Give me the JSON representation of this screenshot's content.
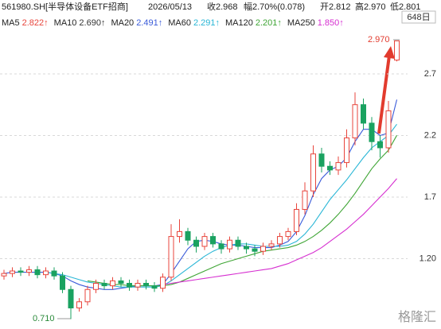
{
  "chart_data": {
    "type": "candlestick",
    "header": {
      "symbol": "561980.SH[半导体设备ETF招商]",
      "date": "2026/05/13",
      "close": "收2.968",
      "change": "幅2.70%(0.078)",
      "open": "开2.812",
      "high": "高2.970",
      "low": "低2.801"
    },
    "period": "648日",
    "watermark": "格隆汇",
    "annotations": {
      "max": "2.970",
      "min": "0.710"
    },
    "ylim": [
      0.655,
      3.106
    ],
    "yticks": [
      {
        "value": 1.2,
        "label": "1.20"
      },
      1.7,
      2.2,
      2.7
    ],
    "grid": true,
    "up_color": "#e8453c",
    "down_color": "#1aa260",
    "open": [
      1.06,
      1.08,
      1.1,
      1.09,
      1.11,
      1.07,
      1.1,
      1.06,
      0.95,
      0.8,
      0.85,
      0.95,
      1.0,
      0.98,
      1.02,
      1.0,
      0.97,
      1.0,
      0.98,
      0.96,
      1.05,
      1.38,
      1.42,
      1.35,
      1.3,
      1.38,
      1.32,
      1.28,
      1.35,
      1.3,
      1.28,
      1.26,
      1.3,
      1.32,
      1.38,
      1.42,
      1.6,
      1.75,
      2.05,
      1.95,
      1.92,
      1.98,
      2.18,
      2.45,
      2.3,
      2.15,
      2.1,
      2.812
    ],
    "high": [
      1.11,
      1.13,
      1.13,
      1.14,
      1.14,
      1.13,
      1.13,
      1.09,
      0.98,
      0.88,
      0.98,
      1.03,
      1.03,
      1.05,
      1.05,
      1.03,
      1.03,
      1.03,
      1.01,
      1.08,
      1.48,
      1.52,
      1.45,
      1.38,
      1.41,
      1.41,
      1.35,
      1.38,
      1.38,
      1.33,
      1.31,
      1.33,
      1.35,
      1.41,
      1.45,
      1.65,
      1.82,
      2.12,
      2.1,
      1.99,
      2.03,
      2.25,
      2.55,
      2.5,
      2.35,
      2.2,
      2.48,
      2.97
    ],
    "low": [
      1.03,
      1.05,
      1.06,
      1.06,
      1.04,
      1.04,
      1.03,
      0.92,
      0.71,
      0.77,
      0.82,
      0.92,
      0.95,
      0.95,
      0.97,
      0.94,
      0.94,
      0.95,
      0.93,
      0.93,
      1.02,
      1.33,
      1.31,
      1.25,
      1.27,
      1.29,
      1.24,
      1.25,
      1.27,
      1.24,
      1.22,
      1.23,
      1.27,
      1.29,
      1.35,
      1.39,
      1.56,
      1.7,
      1.9,
      1.88,
      1.88,
      1.94,
      2.12,
      2.25,
      2.08,
      2.02,
      2.06,
      2.801
    ],
    "close": [
      1.08,
      1.1,
      1.09,
      1.11,
      1.07,
      1.1,
      1.06,
      0.95,
      0.8,
      0.85,
      0.95,
      1.0,
      0.98,
      1.02,
      1.0,
      0.97,
      1.0,
      0.98,
      0.96,
      1.05,
      1.38,
      1.42,
      1.35,
      1.3,
      1.38,
      1.32,
      1.28,
      1.35,
      1.3,
      1.28,
      1.26,
      1.3,
      1.32,
      1.38,
      1.42,
      1.6,
      1.75,
      2.05,
      1.95,
      1.92,
      1.98,
      2.18,
      2.45,
      2.3,
      2.15,
      2.1,
      2.4,
      2.968
    ],
    "series": [
      {
        "name": "MA5",
        "color": "#e8453c",
        "label": "2.822↑"
      },
      {
        "name": "MA10",
        "color": "#333333",
        "label": "2.690↑"
      },
      {
        "name": "MA20",
        "color": "#3a5bd9",
        "label": "2.491↑",
        "values": [
          1.08,
          1.09,
          1.09,
          1.09,
          1.09,
          1.09,
          1.08,
          1.06,
          1.02,
          0.99,
          0.97,
          0.96,
          0.95,
          0.95,
          0.96,
          0.97,
          0.98,
          0.98,
          0.98,
          0.99,
          1.08,
          1.18,
          1.28,
          1.34,
          1.35,
          1.34,
          1.32,
          1.31,
          1.31,
          1.3,
          1.29,
          1.29,
          1.29,
          1.31,
          1.34,
          1.42,
          1.55,
          1.72,
          1.85,
          1.92,
          1.95,
          2.02,
          2.15,
          2.25,
          2.25,
          2.2,
          2.22,
          2.491
        ]
      },
      {
        "name": "MA60",
        "color": "#29b6d6",
        "label": "2.291↑",
        "values": [
          null,
          null,
          null,
          null,
          null,
          1.09,
          1.08,
          1.07,
          1.05,
          1.03,
          1.01,
          1.0,
          0.99,
          0.98,
          0.97,
          0.97,
          0.97,
          0.97,
          0.97,
          0.98,
          1.02,
          1.07,
          1.12,
          1.17,
          1.22,
          1.26,
          1.29,
          1.31,
          1.32,
          1.32,
          1.31,
          1.3,
          1.3,
          1.3,
          1.31,
          1.34,
          1.4,
          1.48,
          1.58,
          1.68,
          1.76,
          1.84,
          1.93,
          2.02,
          2.1,
          2.15,
          2.2,
          2.291
        ]
      },
      {
        "name": "MA120",
        "color": "#3fa535",
        "label": "2.201↑",
        "values": [
          null,
          null,
          null,
          null,
          null,
          null,
          null,
          null,
          null,
          null,
          1.02,
          1.01,
          1.0,
          0.99,
          0.99,
          0.98,
          0.98,
          0.98,
          0.98,
          0.98,
          0.99,
          1.01,
          1.04,
          1.07,
          1.1,
          1.13,
          1.16,
          1.18,
          1.2,
          1.22,
          1.24,
          1.26,
          1.27,
          1.28,
          1.29,
          1.31,
          1.34,
          1.38,
          1.43,
          1.49,
          1.56,
          1.64,
          1.73,
          1.83,
          1.93,
          2.01,
          2.08,
          2.201
        ]
      },
      {
        "name": "MA250",
        "color": "#d62fd0",
        "label": "1.850↑",
        "values": [
          null,
          null,
          null,
          null,
          null,
          null,
          null,
          null,
          null,
          null,
          null,
          null,
          null,
          null,
          null,
          null,
          null,
          null,
          null,
          0.99,
          1.0,
          1.01,
          1.02,
          1.03,
          1.04,
          1.05,
          1.06,
          1.07,
          1.08,
          1.09,
          1.1,
          1.11,
          1.12,
          1.14,
          1.16,
          1.19,
          1.22,
          1.25,
          1.29,
          1.34,
          1.39,
          1.44,
          1.5,
          1.56,
          1.63,
          1.7,
          1.77,
          1.85
        ]
      }
    ]
  }
}
